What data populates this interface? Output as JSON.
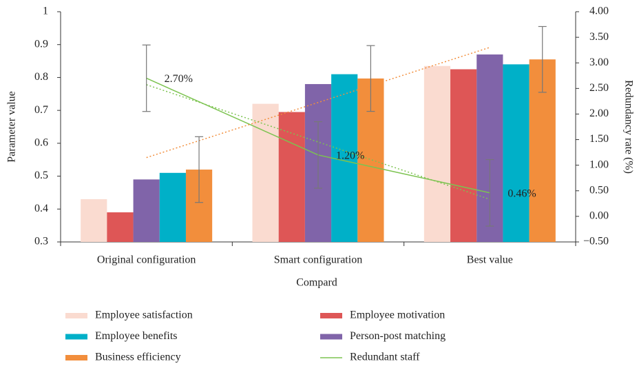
{
  "chart_data": {
    "type": "bar",
    "xlabel": "Compard",
    "ylabel": "Parameter value",
    "y2label": "Redundancy rate (%)",
    "categories": [
      "Original configuration",
      "Smart configuration",
      "Best value"
    ],
    "ylim": [
      0.3,
      1
    ],
    "yticks": [
      0.3,
      0.4,
      0.5,
      0.6,
      0.7,
      0.8,
      0.9,
      1
    ],
    "y2lim": [
      -0.5,
      4
    ],
    "y2ticks": [
      {
        "value": -0.5,
        "label": "−0.50"
      },
      {
        "value": 0,
        "label": "0.00"
      },
      {
        "value": 0.5,
        "label": "0.50"
      },
      {
        "value": 1,
        "label": "1.00"
      },
      {
        "value": 1.5,
        "label": "1.50"
      },
      {
        "value": 2,
        "label": "2.00"
      },
      {
        "value": 2.5,
        "label": "2.50"
      },
      {
        "value": 3,
        "label": "3.00"
      },
      {
        "value": 3.5,
        "label": "3.50"
      },
      {
        "value": 4,
        "label": "4.00"
      }
    ],
    "legend": "bottom",
    "series": [
      {
        "name": "Employee satisfaction",
        "type": "bar",
        "color": "#fadbd0",
        "values": [
          0.43,
          0.72,
          0.835
        ]
      },
      {
        "name": "Employee motivation",
        "type": "bar",
        "color": "#de5656",
        "values": [
          0.39,
          0.695,
          0.825
        ]
      },
      {
        "name": "Person-post matching",
        "type": "bar",
        "color": "#8064a9",
        "values": [
          0.49,
          0.78,
          0.87
        ]
      },
      {
        "name": "Employee benefits",
        "type": "bar",
        "color": "#00b0c8",
        "values": [
          0.51,
          0.81,
          0.84
        ]
      },
      {
        "name": "Business efficiency",
        "type": "bar",
        "color": "#f28e3c",
        "values": [
          0.52,
          0.797,
          0.855
        ],
        "errors": [
          0.1,
          0.1,
          0.1
        ],
        "trendline": true
      },
      {
        "name": "Redundant staff",
        "type": "line",
        "axis": "y2",
        "color": "#7cc350",
        "values": [
          2.7,
          1.2,
          0.46
        ],
        "value_labels": [
          "2.70%",
          "1.20%",
          "0.46%"
        ],
        "errors": [
          0.65,
          0.65,
          0.65
        ],
        "trendline": true
      }
    ]
  }
}
